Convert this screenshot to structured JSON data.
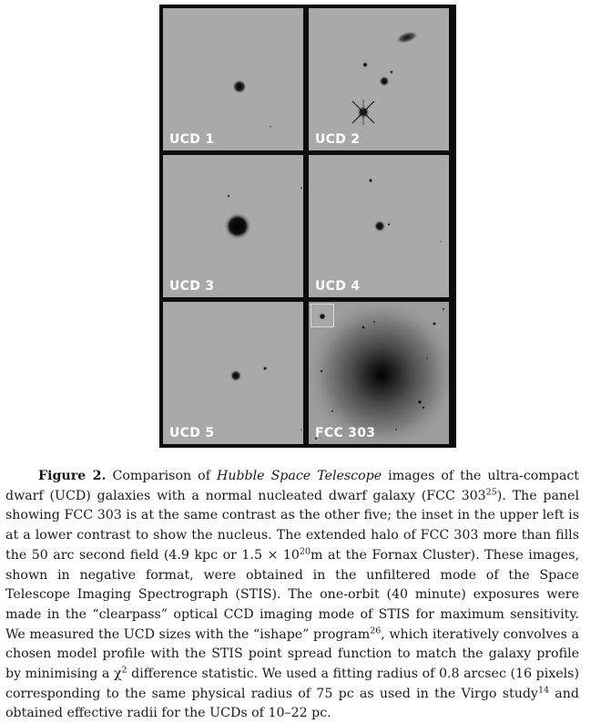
{
  "figure": {
    "panels": [
      {
        "label": "UCD 1"
      },
      {
        "label": "UCD 2"
      },
      {
        "label": "UCD 3"
      },
      {
        "label": "UCD 4"
      },
      {
        "label": "UCD 5"
      },
      {
        "label": "FCC 303"
      }
    ]
  },
  "caption": {
    "fig_label": "Figure 2.",
    "text_1": "Comparison of",
    "telescope": "Hubble Space Telescope",
    "text_2": "images of the ultra-compact dwarf (UCD) galaxies with a normal nucleated dwarf galaxy (FCC 303",
    "ref_1": "25",
    "text_3": "). The panel showing FCC 303 is at the same contrast as the other five; the inset in the upper left is at a lower contrast to show the nucleus. The extended halo of FCC 303 more than fills the 50 arc second field (4.9 kpc or 1.5 × 10",
    "exp_1": "20",
    "text_4": "m at the Fornax Cluster). These images, shown in negative format, were obtained in the unfiltered mode of the Space Telescope Imaging Spectrograph (STIS). The one-orbit (40 minute) exposures were made in the “clearpass” optical CCD imaging mode of STIS for maximum sensitivity. We measured the UCD sizes with the “ishape” program",
    "ref_2": "26",
    "text_5": ", which iteratively convolves a chosen model profile with the STIS point spread function to match the galaxy profile by minimising a χ",
    "exp_2": "2",
    "text_6": "difference statistic. We used a fitting radius of 0.8 arcsec (16 pixels) corresponding to the same physical radius of 75 pc as used in the Virgo study",
    "ref_3": "14",
    "text_7": "and obtained effective radii for the UCDs of 10–22 pc."
  }
}
